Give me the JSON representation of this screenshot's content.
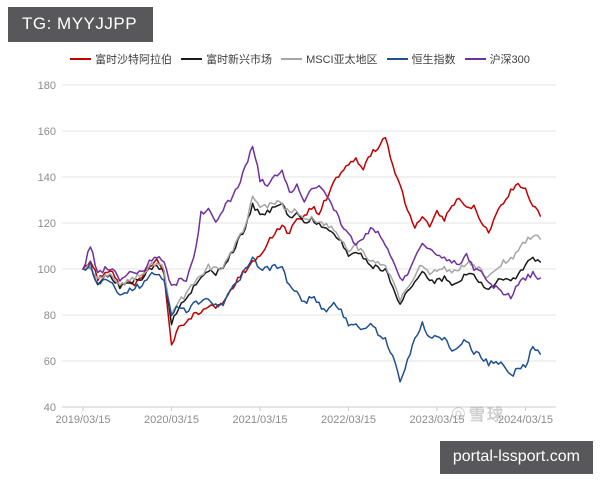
{
  "header": {
    "title": "TG: MYYJJPP"
  },
  "watermarks": {
    "chart_watermark": "雪球",
    "bottom_right": "portal-lssport.com"
  },
  "colors": {
    "badge_bg": "#58585a",
    "axis_text": "#8c8c8c",
    "grid_line": "#e3e3e3",
    "axis_line": "#cccccc",
    "legend_text": "#404040",
    "background": "#ffffff"
  },
  "chart_data": {
    "type": "line",
    "title": "",
    "xlabel": "",
    "ylabel": "",
    "x_start": "2019/03/15",
    "x_step": "monthly",
    "x_tick_labels": [
      "2019/03/15",
      "2020/03/15",
      "2021/03/15",
      "2022/03/15",
      "2023/03/15",
      "2024/03/15"
    ],
    "x_tick_month_indices": [
      0,
      12,
      24,
      36,
      48,
      60
    ],
    "ylim": [
      40,
      180
    ],
    "y_ticks": [
      40,
      60,
      80,
      100,
      120,
      140,
      160,
      180
    ],
    "grid": "horizontal",
    "legend_position": "top",
    "series": [
      {
        "name": "富时沙特阿拉伯",
        "color": "#c00000",
        "values": [
          100,
          104,
          96,
          98,
          99,
          92,
          95,
          93,
          97,
          101,
          104,
          98,
          67,
          75,
          77,
          80,
          82,
          84,
          84,
          86,
          90,
          96,
          99,
          103,
          105,
          112,
          116,
          118,
          116,
          121,
          123,
          127,
          124,
          131,
          138,
          142,
          145,
          148,
          143,
          150,
          153,
          157,
          145,
          137,
          126,
          118,
          123,
          119,
          125,
          121,
          128,
          131,
          126,
          128,
          121,
          116,
          123,
          129,
          134,
          137,
          134,
          128,
          123
        ]
      },
      {
        "name": "富时新兴市场",
        "color": "#1a1a1a",
        "values": [
          100,
          101,
          94,
          97,
          96,
          92,
          94,
          95,
          96,
          100,
          102,
          98,
          76,
          84,
          86,
          92,
          96,
          100,
          98,
          100,
          106,
          112,
          118,
          128,
          124,
          125,
          127,
          128,
          122,
          124,
          120,
          122,
          119,
          118,
          115,
          112,
          106,
          108,
          105,
          102,
          100,
          100,
          93,
          84,
          90,
          94,
          99,
          94,
          95,
          96,
          94,
          95,
          98,
          97,
          94,
          91,
          94,
          96,
          94,
          98,
          102,
          105,
          103
        ]
      },
      {
        "name": "MSCI亚太地区",
        "color": "#a6a6a6",
        "values": [
          100,
          101,
          95,
          98,
          97,
          93,
          95,
          96,
          98,
          101,
          103,
          100,
          79,
          86,
          89,
          94,
          97,
          101,
          100,
          101,
          107,
          113,
          119,
          131,
          127,
          127,
          129,
          128,
          124,
          126,
          121,
          123,
          120,
          119,
          117,
          113,
          108,
          110,
          107,
          103,
          102,
          102,
          95,
          86,
          92,
          97,
          102,
          98,
          99,
          100,
          98,
          100,
          103,
          102,
          99,
          96,
          100,
          103,
          104,
          108,
          112,
          115,
          113
        ]
      },
      {
        "name": "恒生指数",
        "color": "#1f5091",
        "values": [
          100,
          102,
          93,
          96,
          95,
          88,
          90,
          92,
          93,
          97,
          98,
          94,
          80,
          84,
          81,
          85,
          86,
          87,
          84,
          84,
          91,
          94,
          100,
          105,
          100,
          100,
          101,
          100,
          93,
          90,
          85,
          88,
          85,
          81,
          85,
          82,
          76,
          77,
          73,
          76,
          72,
          69,
          62,
          52,
          60,
          69,
          76,
          70,
          70,
          70,
          64,
          67,
          69,
          64,
          62,
          59,
          60,
          58,
          53,
          57,
          58,
          66,
          63
        ]
      },
      {
        "name": "沪深300",
        "color": "#7030a0",
        "values": [
          100,
          110,
          98,
          100,
          100,
          95,
          98,
          98,
          99,
          103,
          105,
          104,
          92,
          95,
          95,
          104,
          124,
          127,
          121,
          126,
          130,
          136,
          144,
          154,
          139,
          137,
          141,
          143,
          133,
          136,
          130,
          134,
          136,
          132,
          126,
          120,
          115,
          110,
          113,
          118,
          116,
          110,
          104,
          95,
          98,
          105,
          110,
          108,
          107,
          105,
          103,
          102,
          106,
          100,
          98,
          94,
          92,
          89,
          88,
          94,
          96,
          98,
          96
        ]
      }
    ]
  }
}
